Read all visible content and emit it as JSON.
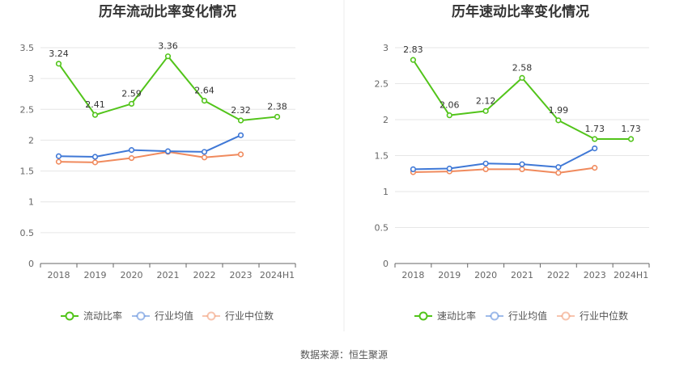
{
  "chart_data": [
    {
      "type": "line",
      "title": "历年流动比率变化情况",
      "categories": [
        "2018",
        "2019",
        "2020",
        "2021",
        "2022",
        "2023",
        "2024H1"
      ],
      "series": [
        {
          "name": "流动比率",
          "values": [
            3.24,
            2.41,
            2.59,
            3.36,
            2.64,
            2.32,
            2.38
          ],
          "color": "#52c41a",
          "labels": [
            "3.24",
            "2.41",
            "2.59",
            "3.36",
            "2.64",
            "2.32",
            "2.38"
          ]
        },
        {
          "name": "行业均值",
          "values": [
            1.74,
            1.73,
            1.84,
            1.82,
            1.81,
            2.08,
            null
          ],
          "color": "#3f78d6"
        },
        {
          "name": "行业中位数",
          "values": [
            1.65,
            1.64,
            1.71,
            1.81,
            1.72,
            1.77,
            null
          ],
          "color": "#f08a5d"
        }
      ],
      "ylim": [
        0,
        3.5
      ],
      "yticks": [
        "0",
        "0.5",
        "1",
        "1.5",
        "2",
        "2.5",
        "3",
        "3.5"
      ],
      "grid": true,
      "legend": "bottom"
    },
    {
      "type": "line",
      "title": "历年速动比率变化情况",
      "categories": [
        "2018",
        "2019",
        "2020",
        "2021",
        "2022",
        "2023",
        "2024H1"
      ],
      "series": [
        {
          "name": "速动比率",
          "values": [
            2.83,
            2.06,
            2.12,
            2.58,
            1.99,
            1.73,
            1.73
          ],
          "color": "#52c41a",
          "labels": [
            "2.83",
            "2.06",
            "2.12",
            "2.58",
            "1.99",
            "1.73",
            "1.73"
          ]
        },
        {
          "name": "行业均值",
          "values": [
            1.31,
            1.32,
            1.39,
            1.38,
            1.34,
            1.6,
            null
          ],
          "color": "#3f78d6"
        },
        {
          "name": "行业中位数",
          "values": [
            1.27,
            1.28,
            1.31,
            1.31,
            1.26,
            1.33,
            null
          ],
          "color": "#f08a5d"
        }
      ],
      "ylim": [
        0,
        3
      ],
      "yticks": [
        "0",
        "0.5",
        "1",
        "1.5",
        "2",
        "2.5",
        "3"
      ],
      "grid": true,
      "legend": "bottom"
    }
  ],
  "footer": {
    "source": "数据来源：恒生聚源"
  }
}
